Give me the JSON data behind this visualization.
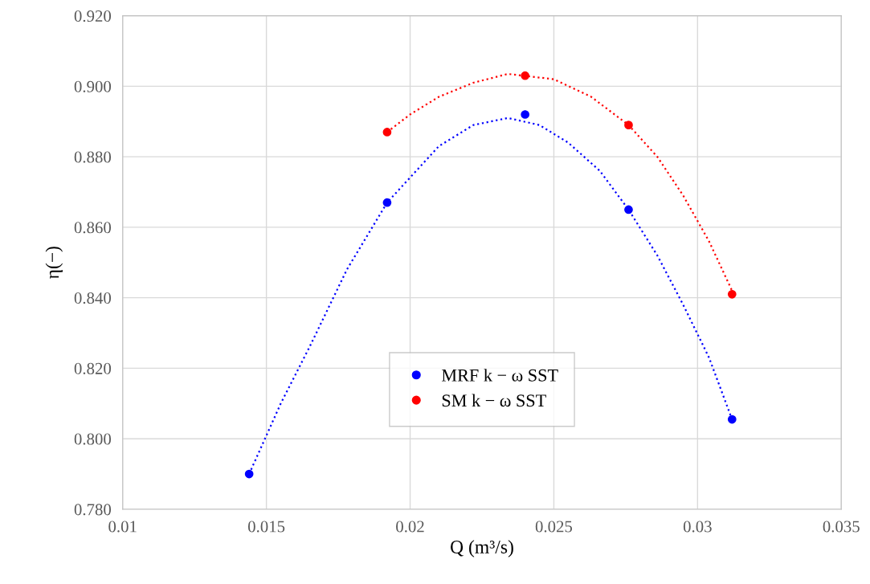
{
  "chart_data": {
    "type": "scatter",
    "xlabel": "Q (m³/s)",
    "ylabel": "η(−)",
    "xlim": [
      0.01,
      0.035
    ],
    "xticks": [
      0.01,
      0.015,
      0.02,
      0.025,
      0.03,
      0.035
    ],
    "ylim": [
      0.78,
      0.92
    ],
    "yticks": [
      {
        "value": 0.78,
        "label": "0.780"
      },
      {
        "value": 0.8,
        "label": "0.800"
      },
      {
        "value": 0.82,
        "label": "0.820"
      },
      {
        "value": 0.84,
        "label": "0.840"
      },
      {
        "value": 0.86,
        "label": "0.860"
      },
      {
        "value": 0.88,
        "label": "0.880"
      },
      {
        "value": 0.9,
        "label": "0.900"
      },
      {
        "value": 0.92,
        "label": "0.920"
      }
    ],
    "grid": true,
    "legend": "bottom",
    "series": [
      {
        "type": "line",
        "line_style": "dotted",
        "marker": "none",
        "color": "#0000ff",
        "x": [
          0.0144,
          0.0155,
          0.0165,
          0.0178,
          0.0192,
          0.021,
          0.0222,
          0.0234,
          0.0245,
          0.0255,
          0.0266,
          0.0276,
          0.0286,
          0.0295,
          0.0304,
          0.0312
        ],
        "values": [
          0.79,
          0.81,
          0.826,
          0.848,
          0.867,
          0.883,
          0.889,
          0.891,
          0.889,
          0.884,
          0.876,
          0.865,
          0.852,
          0.838,
          0.823,
          0.8055
        ]
      },
      {
        "type": "line",
        "line_style": "dotted",
        "marker": "none",
        "color": "#ff0000",
        "x": [
          0.0192,
          0.02,
          0.021,
          0.0222,
          0.0234,
          0.025,
          0.0263,
          0.0276,
          0.0286,
          0.0295,
          0.0304,
          0.0312
        ],
        "values": [
          0.887,
          0.892,
          0.897,
          0.901,
          0.9035,
          0.902,
          0.897,
          0.889,
          0.88,
          0.869,
          0.856,
          0.842
        ]
      },
      {
        "name": "MRF k − ω SST",
        "marker": "circle",
        "color": "#0000ff",
        "x": [
          0.0144,
          0.0192,
          0.024,
          0.0276,
          0.0312
        ],
        "values": [
          0.79,
          0.867,
          0.892,
          0.865,
          0.8055
        ]
      },
      {
        "name": "SM k − ω SST",
        "marker": "circle",
        "color": "#ff0000",
        "x": [
          0.0192,
          0.024,
          0.0276,
          0.0312
        ],
        "values": [
          0.887,
          0.903,
          0.889,
          0.841
        ]
      }
    ]
  }
}
